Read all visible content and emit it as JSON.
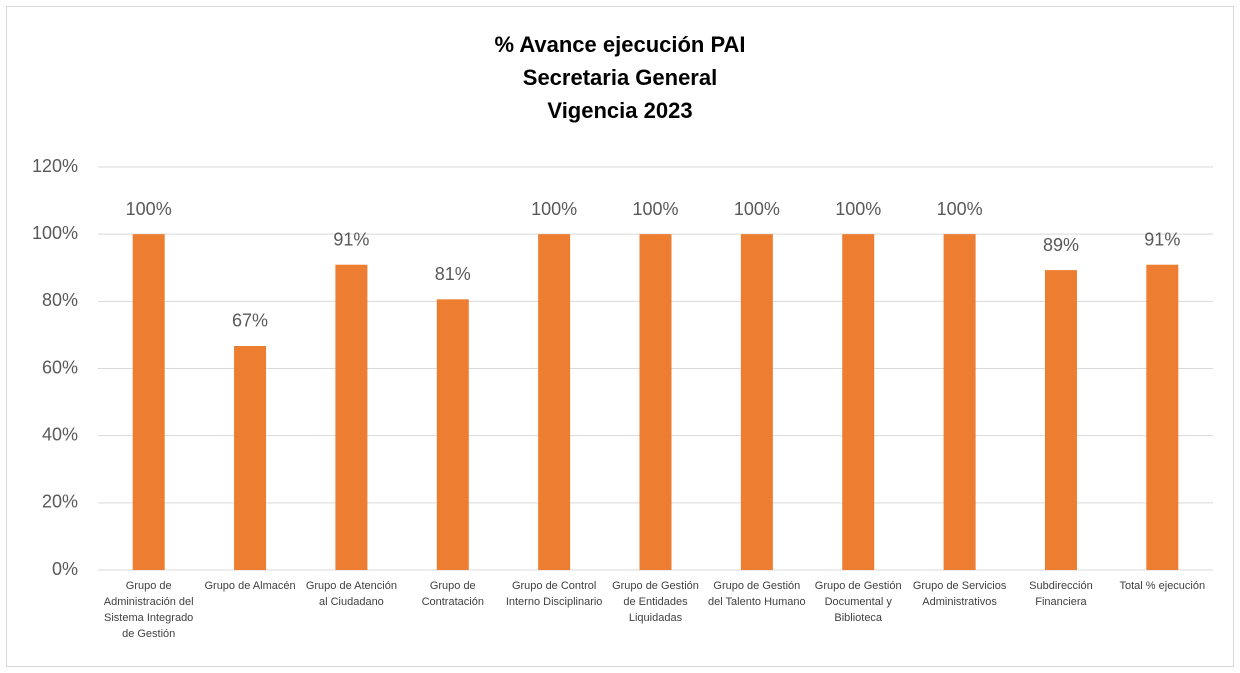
{
  "chart_data": {
    "type": "bar",
    "title": [
      "% Avance ejecución PAI",
      "Secretaria General",
      "Vigencia 2023"
    ],
    "categories": [
      "Grupo de Administración del Sistema Integrado de Gestión",
      "Grupo de Almacén",
      "Grupo de Atención al Ciudadano",
      "Grupo de Contratación",
      "Grupo de Control Interno Disciplinario",
      "Grupo de Gestión de Entidades Liquidadas",
      "Grupo de Gestión del Talento Humano",
      "Grupo de Gestión Documental y Biblioteca",
      "Grupo de Servicios Administrativos",
      "Subdirección Financiera",
      "Total % ejecución"
    ],
    "values": [
      100,
      66.7,
      90.9,
      80.6,
      100,
      100,
      100,
      100,
      100,
      89.3,
      90.9
    ],
    "value_labels": [
      "100%",
      "67%",
      "91%",
      "81%",
      "100%",
      "100%",
      "100%",
      "100%",
      "100%",
      "89%",
      "91%"
    ],
    "color": "#ed7d31",
    "ylim": [
      0,
      120
    ],
    "yticks": [
      {
        "value": 0,
        "label": "0%"
      },
      {
        "value": 20,
        "label": "20%"
      },
      {
        "value": 40,
        "label": "40%"
      },
      {
        "value": 60,
        "label": "60%"
      },
      {
        "value": 80,
        "label": "80%"
      },
      {
        "value": 100,
        "label": "100%"
      },
      {
        "value": 120,
        "label": "120%"
      }
    ],
    "grid": true
  }
}
